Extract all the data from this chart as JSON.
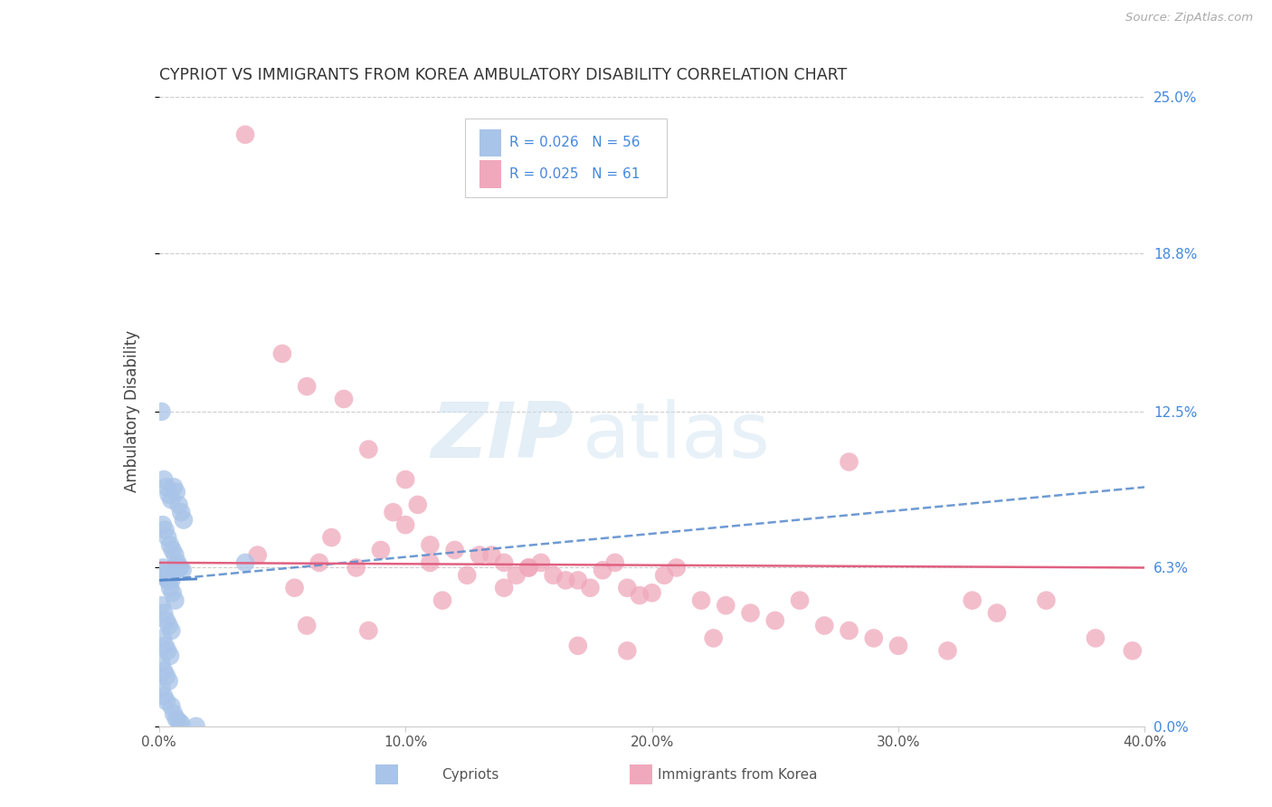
{
  "title": "CYPRIOT VS IMMIGRANTS FROM KOREA AMBULATORY DISABILITY CORRELATION CHART",
  "source": "Source: ZipAtlas.com",
  "ylabel": "Ambulatory Disability",
  "ytick_values": [
    0.0,
    6.3,
    12.5,
    18.8,
    25.0
  ],
  "xmin": 0.0,
  "xmax": 40.0,
  "ymin": 0.0,
  "ymax": 25.0,
  "legend_label1": "Cypriots",
  "legend_label2": "Immigrants from Korea",
  "cypriot_color": "#a8c4e8",
  "korea_color": "#f0a8bc",
  "trendline_cypriot_color": "#5588cc",
  "trendline_korea_color": "#e06080",
  "watermark_zip": "ZIP",
  "watermark_atlas": "atlas",
  "cypriot_x": [
    0.1,
    0.2,
    0.3,
    0.4,
    0.5,
    0.6,
    0.7,
    0.8,
    0.9,
    1.0,
    0.15,
    0.25,
    0.35,
    0.45,
    0.55,
    0.65,
    0.75,
    0.85,
    0.95,
    0.1,
    0.2,
    0.3,
    0.4,
    0.5,
    0.6,
    0.7,
    0.8,
    0.15,
    0.25,
    0.35,
    0.45,
    0.55,
    0.65,
    0.1,
    0.2,
    0.3,
    0.4,
    0.5,
    0.15,
    0.25,
    0.35,
    0.45,
    0.1,
    0.2,
    0.3,
    0.4,
    0.1,
    0.2,
    0.3,
    0.5,
    0.6,
    0.7,
    0.8,
    0.9,
    1.5,
    3.5
  ],
  "cypriot_y": [
    12.5,
    9.8,
    9.5,
    9.2,
    9.0,
    9.5,
    9.3,
    8.8,
    8.5,
    8.2,
    8.0,
    7.8,
    7.5,
    7.2,
    7.0,
    6.8,
    6.5,
    6.3,
    6.2,
    6.1,
    6.0,
    5.9,
    5.8,
    5.8,
    6.3,
    6.3,
    6.3,
    6.3,
    6.0,
    5.8,
    5.5,
    5.3,
    5.0,
    4.8,
    4.5,
    4.2,
    4.0,
    3.8,
    3.5,
    3.2,
    3.0,
    2.8,
    2.5,
    2.2,
    2.0,
    1.8,
    1.5,
    1.2,
    1.0,
    0.8,
    0.5,
    0.3,
    0.2,
    0.1,
    0.0,
    6.5
  ],
  "korea_x": [
    3.5,
    5.0,
    6.0,
    7.5,
    8.5,
    9.5,
    10.0,
    11.0,
    12.0,
    13.0,
    14.0,
    15.0,
    16.0,
    17.0,
    18.0,
    19.0,
    20.0,
    21.0,
    22.0,
    23.0,
    24.0,
    25.0,
    26.0,
    27.0,
    28.0,
    29.0,
    30.0,
    32.0,
    34.0,
    36.0,
    38.0,
    39.5,
    4.0,
    6.5,
    8.0,
    10.5,
    12.5,
    14.5,
    16.5,
    18.5,
    20.5,
    5.5,
    7.0,
    9.0,
    11.0,
    13.5,
    15.5,
    17.5,
    19.5,
    6.0,
    8.5,
    11.5,
    14.0,
    19.0,
    22.5,
    10.0,
    15.0,
    17.0,
    28.0,
    33.0
  ],
  "korea_y": [
    23.5,
    14.8,
    13.5,
    13.0,
    11.0,
    8.5,
    8.0,
    7.2,
    7.0,
    6.8,
    6.5,
    6.3,
    6.0,
    5.8,
    6.2,
    5.5,
    5.3,
    6.3,
    5.0,
    4.8,
    4.5,
    4.2,
    5.0,
    4.0,
    3.8,
    3.5,
    3.2,
    3.0,
    4.5,
    5.0,
    3.5,
    3.0,
    6.8,
    6.5,
    6.3,
    8.8,
    6.0,
    6.0,
    5.8,
    6.5,
    6.0,
    5.5,
    7.5,
    7.0,
    6.5,
    6.8,
    6.5,
    5.5,
    5.2,
    4.0,
    3.8,
    5.0,
    5.5,
    3.0,
    3.5,
    9.8,
    6.3,
    3.2,
    10.5,
    5.0
  ],
  "cypriot_trendline_x0": 0.0,
  "cypriot_trendline_x1": 40.0,
  "cypriot_trendline_y0": 5.8,
  "cypriot_trendline_y1": 9.5,
  "korea_trendline_x0": 0.0,
  "korea_trendline_x1": 40.0,
  "korea_trendline_y0": 6.5,
  "korea_trendline_y1": 6.3
}
